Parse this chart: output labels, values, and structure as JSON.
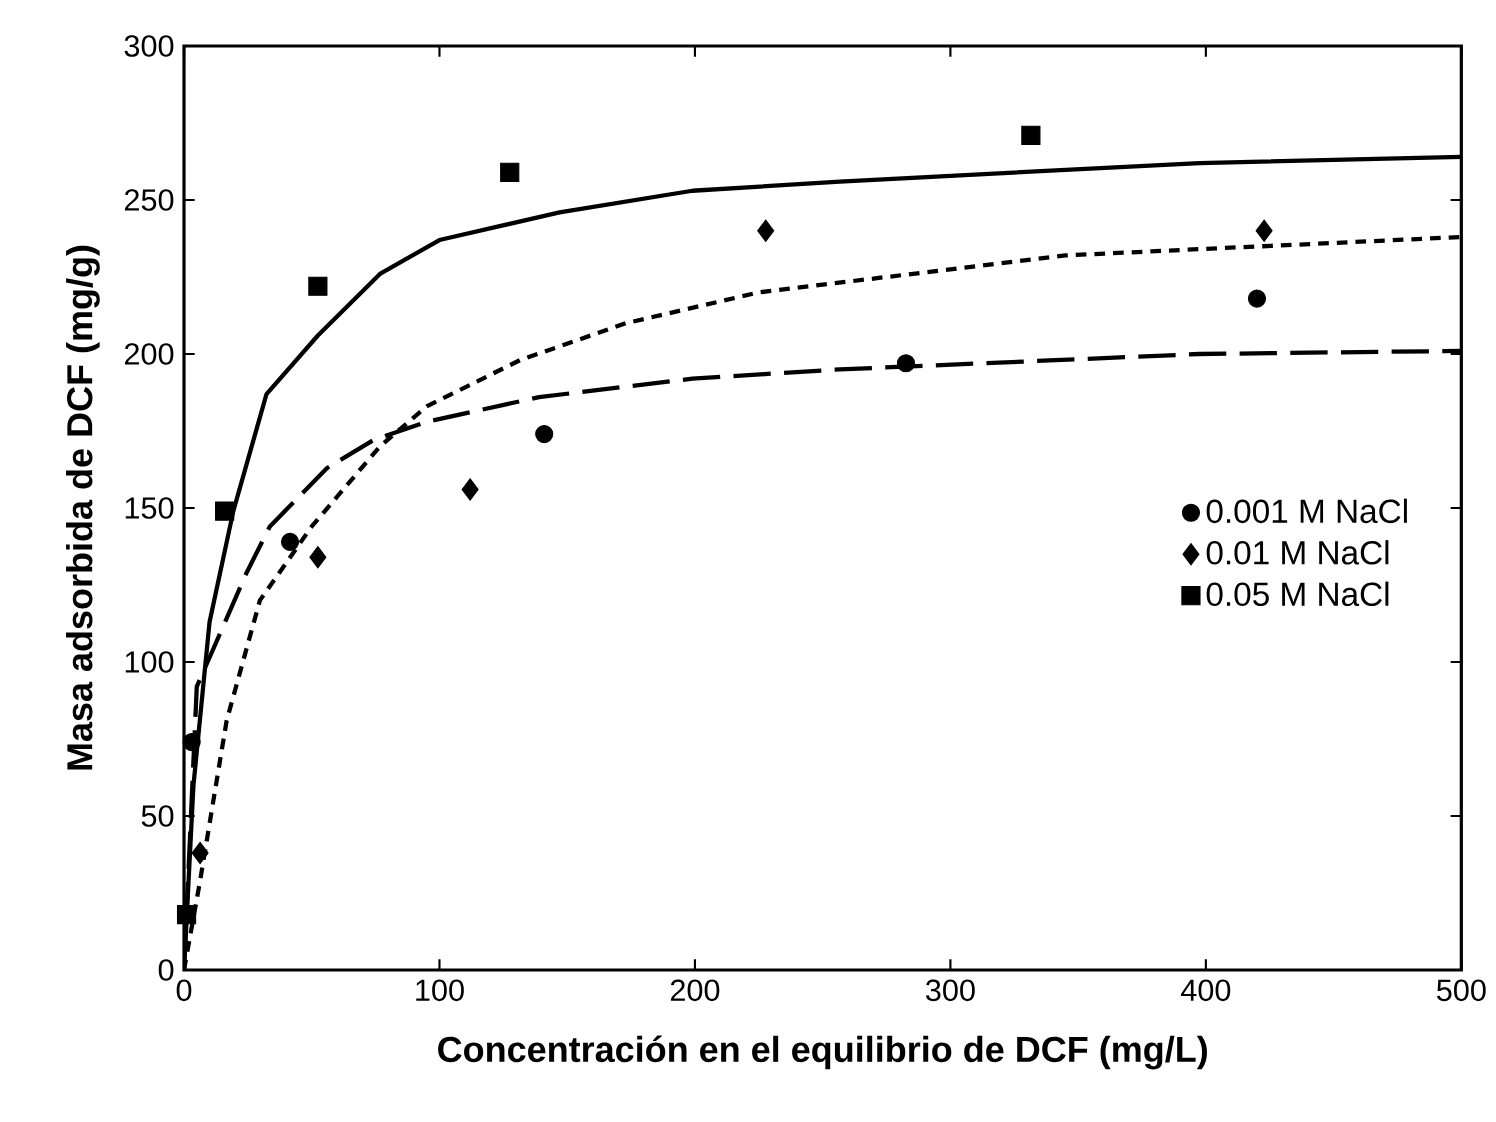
{
  "chart_data": {
    "type": "scatter",
    "xlabel": "Concentración en el equilibrio de DCF (mg/L)",
    "ylabel": "Masa adsorbida de DCF (mg/g)",
    "xlim": [
      0,
      500
    ],
    "ylim": [
      0,
      300
    ],
    "xticks": [
      0,
      100,
      200,
      300,
      400,
      500
    ],
    "yticks": [
      0,
      50,
      100,
      150,
      200,
      250,
      300
    ],
    "grid": false,
    "legend": "right",
    "series": [
      {
        "name": "0.001 M NaCl",
        "color": "#000000",
        "marker": "circle",
        "x": [
          3,
          41.5,
          141,
          282.6,
          420
        ],
        "values": [
          74,
          139,
          174,
          197,
          218
        ]
      },
      {
        "name": "0.01 M NaCl",
        "color": "#000000",
        "marker": "diamond",
        "x": [
          6.3,
          52.4,
          112,
          227.7,
          422.8
        ],
        "values": [
          38,
          134,
          156,
          240,
          240
        ]
      },
      {
        "name": "0.05 M NaCl",
        "color": "#000000",
        "marker": "square",
        "x": [
          1,
          15.9,
          52.4,
          127.5,
          331.5
        ],
        "values": [
          18,
          149,
          222,
          259,
          271
        ]
      },
      {
        "type": "line",
        "color": "#000000",
        "marker": "none",
        "line_style": "dashed",
        "x": [
          0,
          5,
          24.5,
          33.6,
          56,
          74,
          95,
          139,
          199,
          256.7,
          397.5,
          500
        ],
        "values": [
          0,
          92,
          129,
          144,
          163,
          172,
          178,
          186,
          192,
          195,
          200,
          201
        ]
      },
      {
        "type": "line",
        "color": "#000000",
        "marker": "none",
        "line_style": "dotted",
        "x": [
          0,
          6.3,
          16.7,
          29.7,
          50,
          76.7,
          95,
          131.5,
          173,
          225,
          345,
          500
        ],
        "values": [
          0,
          29,
          81,
          120,
          144,
          170,
          183,
          198,
          210,
          220,
          232,
          238
        ]
      },
      {
        "type": "line",
        "color": "#000000",
        "marker": "none",
        "line_style": "solid",
        "x": [
          0,
          3.7,
          10,
          19.3,
          32.3,
          52.4,
          76.7,
          100,
          147,
          199,
          256.7,
          397.5,
          500
        ],
        "values": [
          0,
          60,
          113,
          149,
          187,
          206,
          226,
          237,
          246,
          253,
          256,
          262,
          264
        ]
      }
    ]
  }
}
